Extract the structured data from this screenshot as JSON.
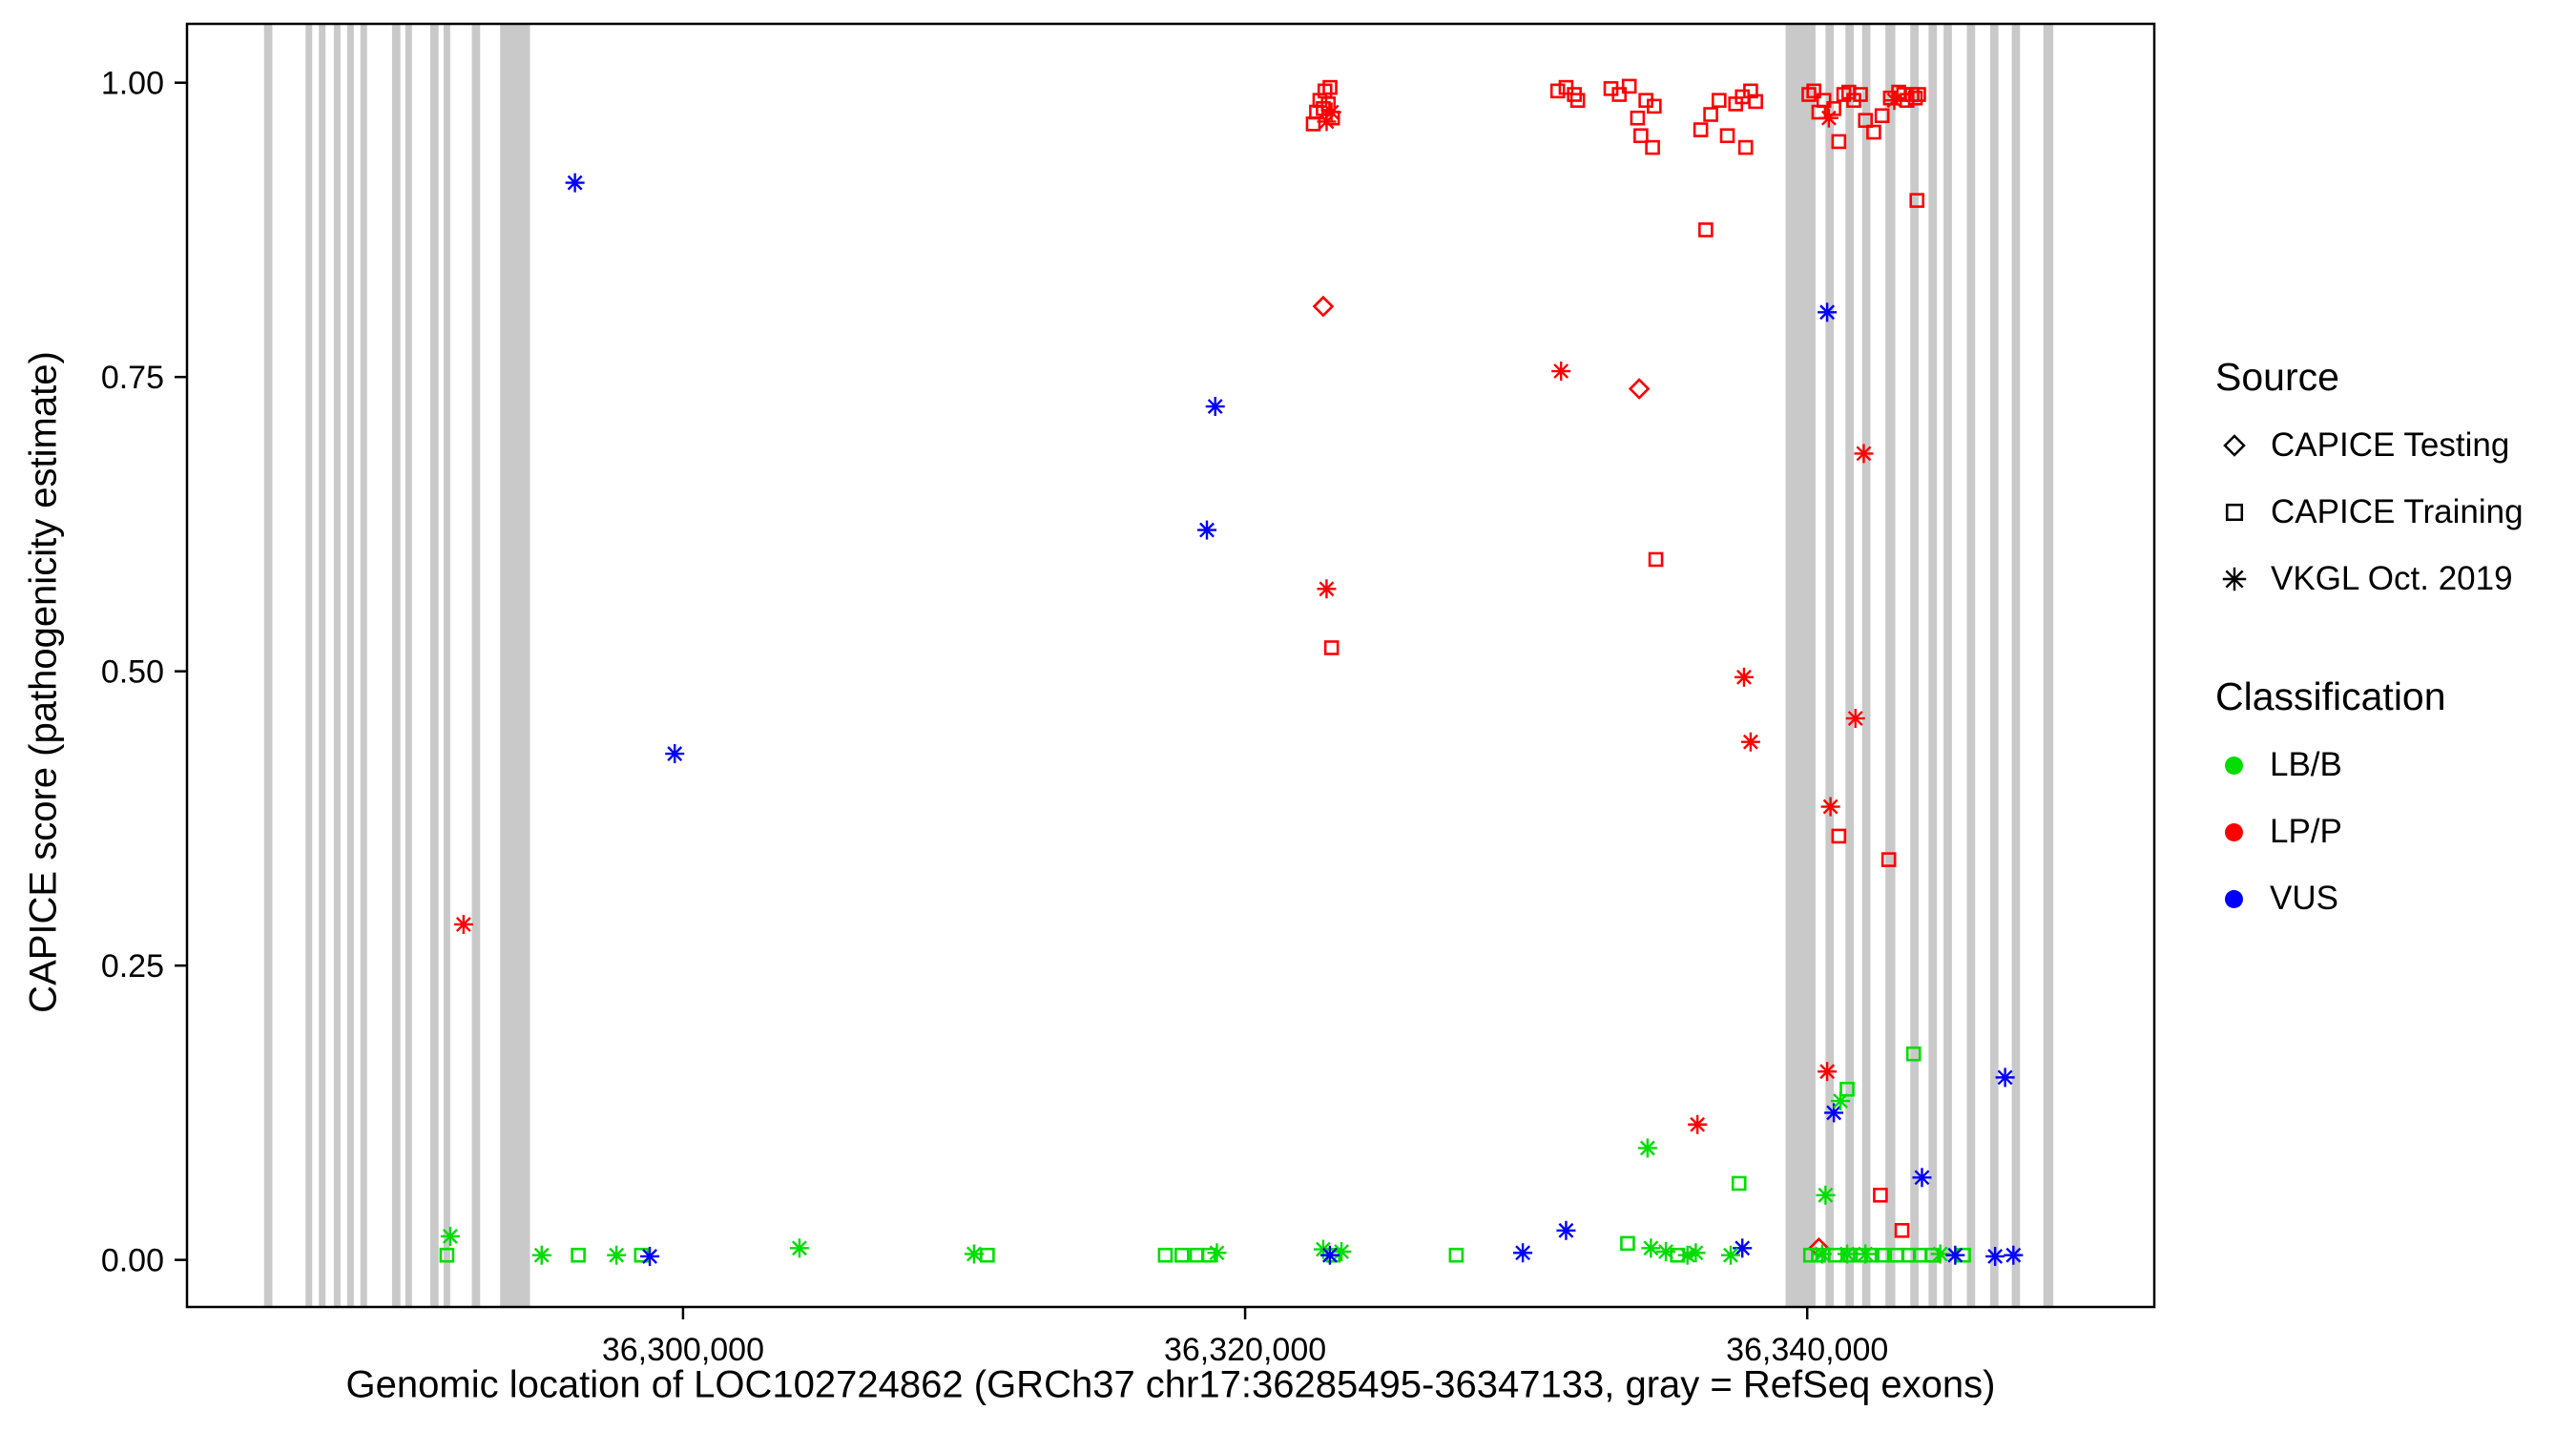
{
  "chart_data": {
    "type": "scatter",
    "title": "",
    "xlabel": "Genomic location of LOC102724862 (GRCh37 chr17:36285495-36347133, gray = RefSeq exons)",
    "ylabel": "CAPICE score (pathogenicity estimate)",
    "x_axis": {
      "min": 36282350,
      "max": 36352350,
      "ticks": [
        36300000,
        36320000,
        36340000
      ],
      "tick_labels": [
        "36,300,000",
        "36,320,000",
        "36,340,000"
      ]
    },
    "y_axis": {
      "min": -0.04,
      "max": 1.05,
      "ticks": [
        0.0,
        0.25,
        0.5,
        0.75,
        1.0
      ],
      "tick_labels": [
        "0.00",
        "0.25",
        "0.50",
        "0.75",
        "1.00"
      ]
    },
    "grid": false,
    "exon_color": "#C9C9C9",
    "exons": [
      [
        36285090,
        36285386
      ],
      [
        36286569,
        36286806
      ],
      [
        36287042,
        36287279
      ],
      [
        36287575,
        36287811
      ],
      [
        36288048,
        36288285
      ],
      [
        36288521,
        36288758
      ],
      [
        36289645,
        36289941
      ],
      [
        36290119,
        36290355
      ],
      [
        36291006,
        36291302
      ],
      [
        36291480,
        36291716
      ],
      [
        36292485,
        36292781
      ],
      [
        36293491,
        36294556
      ],
      [
        36339231,
        36340296
      ],
      [
        36340651,
        36340947
      ],
      [
        36341361,
        36341657
      ],
      [
        36341953,
        36342249
      ],
      [
        36342781,
        36343136
      ],
      [
        36343669,
        36343964
      ],
      [
        36344319,
        36344615
      ],
      [
        36344852,
        36345148
      ],
      [
        36345680,
        36345976
      ],
      [
        36346508,
        36346804
      ],
      [
        36347278,
        36347573
      ],
      [
        36348402,
        36348757
      ]
    ],
    "colors": {
      "LB/B": "#00DD00",
      "LP/P": "#FF0000",
      "VUS": "#0000FF"
    },
    "shapes": {
      "CAPICE Testing": "diamond",
      "CAPICE Training": "square",
      "VKGL Oct. 2019": "asterisk"
    },
    "points_format": {
      "fields": [
        "x_genomic_position",
        "y_capice_score",
        "source",
        "classification"
      ],
      "source_codes": {
        "T": "CAPICE Testing",
        "R": "CAPICE Training",
        "V": "VKGL Oct. 2019"
      },
      "class_codes": {
        "B": "LB/B",
        "P": "LP/P",
        "U": "VUS"
      }
    },
    "points": [
      [
        36296154,
        0.915,
        "V",
        "U"
      ],
      [
        36299704,
        0.43,
        "V",
        "U"
      ],
      [
        36292190,
        0.285,
        "V",
        "P"
      ],
      [
        36291716,
        0.02,
        "V",
        "B"
      ],
      [
        36291598,
        0.004,
        "R",
        "B"
      ],
      [
        36294970,
        0.004,
        "V",
        "B"
      ],
      [
        36296272,
        0.004,
        "R",
        "B"
      ],
      [
        36297633,
        0.004,
        "V",
        "B"
      ],
      [
        36298520,
        0.004,
        "R",
        "B"
      ],
      [
        36298816,
        0.003,
        "V",
        "U"
      ],
      [
        36304142,
        0.01,
        "V",
        "B"
      ],
      [
        36310355,
        0.005,
        "V",
        "B"
      ],
      [
        36310828,
        0.004,
        "R",
        "B"
      ],
      [
        36317160,
        0.004,
        "R",
        "B"
      ],
      [
        36317752,
        0.004,
        "R",
        "B"
      ],
      [
        36318284,
        0.004,
        "R",
        "B"
      ],
      [
        36318699,
        0.004,
        "R",
        "B"
      ],
      [
        36318995,
        0.006,
        "V",
        "B"
      ],
      [
        36318936,
        0.725,
        "V",
        "U"
      ],
      [
        36318640,
        0.62,
        "V",
        "U"
      ],
      [
        36322424,
        0.965,
        "R",
        "P"
      ],
      [
        36322540,
        0.975,
        "R",
        "P"
      ],
      [
        36322660,
        0.985,
        "R",
        "P"
      ],
      [
        36322780,
        0.978,
        "R",
        "P"
      ],
      [
        36322840,
        0.993,
        "R",
        "P"
      ],
      [
        36322960,
        0.982,
        "R",
        "P"
      ],
      [
        36323020,
        0.996,
        "R",
        "P"
      ],
      [
        36323110,
        0.97,
        "R",
        "P"
      ],
      [
        36323075,
        0.975,
        "V",
        "P"
      ],
      [
        36322900,
        0.967,
        "V",
        "P"
      ],
      [
        36322780,
        0.81,
        "T",
        "P"
      ],
      [
        36322898,
        0.57,
        "V",
        "P"
      ],
      [
        36323075,
        0.52,
        "R",
        "P"
      ],
      [
        36322780,
        0.009,
        "V",
        "B"
      ],
      [
        36323134,
        0.004,
        "R",
        "B"
      ],
      [
        36323430,
        0.007,
        "V",
        "B"
      ],
      [
        36323016,
        0.004,
        "V",
        "U"
      ],
      [
        36327513,
        0.004,
        "R",
        "B"
      ],
      [
        36329880,
        0.006,
        "V",
        "U"
      ],
      [
        36331123,
        0.993,
        "R",
        "P"
      ],
      [
        36331419,
        0.996,
        "R",
        "P"
      ],
      [
        36331715,
        0.99,
        "R",
        "P"
      ],
      [
        36331833,
        0.985,
        "R",
        "P"
      ],
      [
        36331241,
        0.755,
        "V",
        "P"
      ],
      [
        36331419,
        0.025,
        "V",
        "U"
      ],
      [
        36333017,
        0.995,
        "R",
        "P"
      ],
      [
        36333313,
        0.99,
        "R",
        "P"
      ],
      [
        36333668,
        0.997,
        "R",
        "P"
      ],
      [
        36333964,
        0.97,
        "R",
        "P"
      ],
      [
        36334260,
        0.985,
        "R",
        "P"
      ],
      [
        36334556,
        0.98,
        "R",
        "P"
      ],
      [
        36334082,
        0.955,
        "R",
        "P"
      ],
      [
        36334497,
        0.945,
        "R",
        "P"
      ],
      [
        36334023,
        0.74,
        "T",
        "P"
      ],
      [
        36334615,
        0.595,
        "R",
        "P"
      ],
      [
        36334319,
        0.095,
        "V",
        "B"
      ],
      [
        36333609,
        0.014,
        "R",
        "B"
      ],
      [
        36334438,
        0.01,
        "V",
        "B"
      ],
      [
        36334970,
        0.007,
        "V",
        "B"
      ],
      [
        36335384,
        0.004,
        "R",
        "B"
      ],
      [
        36335739,
        0.004,
        "V",
        "B"
      ],
      [
        36336035,
        0.006,
        "V",
        "B"
      ],
      [
        36336094,
        0.115,
        "V",
        "P"
      ],
      [
        36336390,
        0.875,
        "R",
        "P"
      ],
      [
        36336212,
        0.96,
        "R",
        "P"
      ],
      [
        36336567,
        0.973,
        "R",
        "P"
      ],
      [
        36336863,
        0.985,
        "R",
        "P"
      ],
      [
        36337159,
        0.955,
        "R",
        "P"
      ],
      [
        36337455,
        0.982,
        "R",
        "P"
      ],
      [
        36337692,
        0.988,
        "R",
        "P"
      ],
      [
        36337987,
        0.993,
        "R",
        "P"
      ],
      [
        36338165,
        0.984,
        "R",
        "P"
      ],
      [
        36337810,
        0.945,
        "R",
        "P"
      ],
      [
        36337751,
        0.495,
        "V",
        "P"
      ],
      [
        36337987,
        0.44,
        "V",
        "P"
      ],
      [
        36337573,
        0.065,
        "R",
        "B"
      ],
      [
        36337692,
        0.01,
        "V",
        "U"
      ],
      [
        36337277,
        0.004,
        "V",
        "B"
      ],
      [
        36340060,
        0.99,
        "R",
        "P"
      ],
      [
        36340237,
        0.993,
        "R",
        "P"
      ],
      [
        36340415,
        0.975,
        "R",
        "P"
      ],
      [
        36340592,
        0.985,
        "R",
        "P"
      ],
      [
        36340770,
        0.97,
        "V",
        "P"
      ],
      [
        36340947,
        0.978,
        "R",
        "P"
      ],
      [
        36341125,
        0.95,
        "R",
        "P"
      ],
      [
        36341302,
        0.99,
        "R",
        "P"
      ],
      [
        36341480,
        0.992,
        "R",
        "P"
      ],
      [
        36341657,
        0.985,
        "R",
        "P"
      ],
      [
        36341894,
        0.99,
        "R",
        "P"
      ],
      [
        36342072,
        0.968,
        "R",
        "P"
      ],
      [
        36342367,
        0.958,
        "R",
        "P"
      ],
      [
        36342663,
        0.972,
        "R",
        "P"
      ],
      [
        36342959,
        0.987,
        "R",
        "P"
      ],
      [
        36343100,
        0.985,
        "V",
        "P"
      ],
      [
        36343254,
        0.992,
        "R",
        "P"
      ],
      [
        36343432,
        0.99,
        "R",
        "P"
      ],
      [
        36343550,
        0.985,
        "R",
        "P"
      ],
      [
        36343728,
        0.99,
        "R",
        "P"
      ],
      [
        36343846,
        0.987,
        "R",
        "P"
      ],
      [
        36343964,
        0.99,
        "R",
        "P"
      ],
      [
        36343905,
        0.9,
        "R",
        "P"
      ],
      [
        36340710,
        0.805,
        "V",
        "U"
      ],
      [
        36342012,
        0.685,
        "V",
        "P"
      ],
      [
        36341716,
        0.46,
        "V",
        "P"
      ],
      [
        36340829,
        0.385,
        "V",
        "P"
      ],
      [
        36341125,
        0.36,
        "R",
        "P"
      ],
      [
        36342900,
        0.34,
        "R",
        "P"
      ],
      [
        36340710,
        0.16,
        "V",
        "P"
      ],
      [
        36340947,
        0.125,
        "V",
        "U"
      ],
      [
        36341184,
        0.135,
        "V",
        "B"
      ],
      [
        36341420,
        0.145,
        "R",
        "B"
      ],
      [
        36343787,
        0.175,
        "R",
        "B"
      ],
      [
        36342604,
        0.055,
        "R",
        "P"
      ],
      [
        36343373,
        0.025,
        "R",
        "P"
      ],
      [
        36344083,
        0.07,
        "V",
        "U"
      ],
      [
        36347041,
        0.155,
        "V",
        "U"
      ],
      [
        36340414,
        0.01,
        "T",
        "P"
      ],
      [
        36340651,
        0.055,
        "V",
        "B"
      ],
      [
        36340120,
        0.004,
        "R",
        "B"
      ],
      [
        36340400,
        0.004,
        "R",
        "B"
      ],
      [
        36341006,
        0.004,
        "R",
        "B"
      ],
      [
        36341538,
        0.004,
        "R",
        "B"
      ],
      [
        36341894,
        0.004,
        "R",
        "B"
      ],
      [
        36342308,
        0.004,
        "R",
        "B"
      ],
      [
        36342663,
        0.004,
        "R",
        "B"
      ],
      [
        36343195,
        0.004,
        "R",
        "B"
      ],
      [
        36343609,
        0.004,
        "R",
        "B"
      ],
      [
        36344023,
        0.004,
        "R",
        "B"
      ],
      [
        36344438,
        0.004,
        "R",
        "B"
      ],
      [
        36345562,
        0.004,
        "R",
        "B"
      ],
      [
        36340533,
        0.005,
        "V",
        "B"
      ],
      [
        36341420,
        0.005,
        "V",
        "B"
      ],
      [
        36342071,
        0.005,
        "V",
        "B"
      ],
      [
        36344734,
        0.005,
        "V",
        "B"
      ],
      [
        36345266,
        0.004,
        "V",
        "U"
      ],
      [
        36346686,
        0.003,
        "V",
        "U"
      ],
      [
        36347337,
        0.004,
        "V",
        "U"
      ]
    ]
  },
  "legend": {
    "source": {
      "title": "Source",
      "items": [
        {
          "label": "CAPICE Testing",
          "shape": "diamond"
        },
        {
          "label": "CAPICE Training",
          "shape": "square"
        },
        {
          "label": "VKGL Oct. 2019",
          "shape": "asterisk"
        }
      ]
    },
    "classification": {
      "title": "Classification",
      "items": [
        {
          "label": "LB/B",
          "color": "#00DD00"
        },
        {
          "label": "LP/P",
          "color": "#FF0000"
        },
        {
          "label": "VUS",
          "color": "#0000FF"
        }
      ]
    }
  }
}
